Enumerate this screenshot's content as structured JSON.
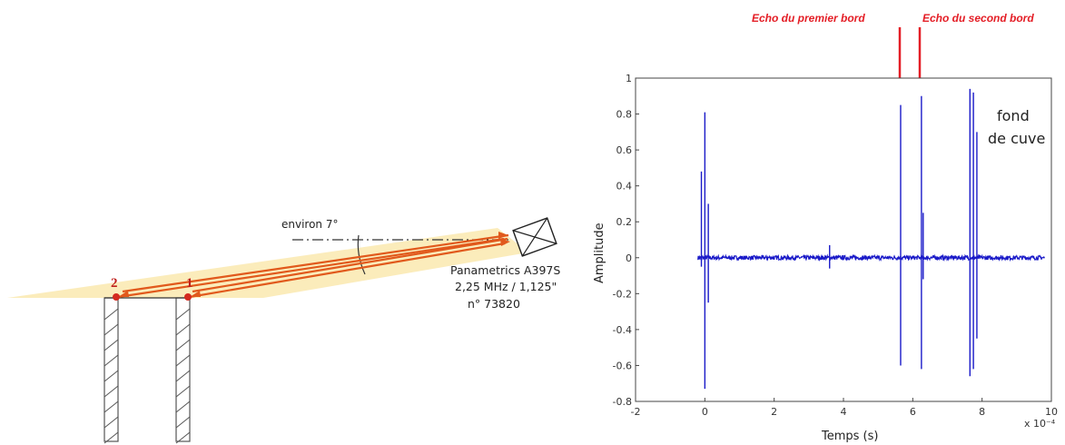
{
  "diagram": {
    "angle_label": "environ 7°",
    "transducer_lines": [
      "Panametrics A397S",
      "2,25 MHz / 1,125\"",
      "n° 73820"
    ],
    "point_labels": [
      "2",
      "1"
    ],
    "colors": {
      "beam": "#fbeab4",
      "ray": "#e1591c",
      "point": "#d42a1f",
      "hatch": "#555555"
    }
  },
  "annotations": {
    "echo1": "Echo du premier bord",
    "echo2": "Echo du second bord",
    "color": "#e41e26"
  },
  "chart_data": {
    "type": "line",
    "title": "",
    "xlabel": "Temps (s)",
    "ylabel": "Amplitude",
    "x_exponent_label": "x 10⁻⁴",
    "xlim": [
      -2,
      10
    ],
    "ylim": [
      -0.8,
      1
    ],
    "xticks": [
      -2,
      0,
      2,
      4,
      6,
      8,
      10
    ],
    "yticks": [
      -0.8,
      -0.6,
      -0.4,
      -0.2,
      0,
      0.2,
      0.4,
      0.6,
      0.8,
      1
    ],
    "ytick_labels": [
      "-0.8",
      "-0.6",
      "-0.4",
      "-0.2",
      "0",
      "0.2",
      "0.4",
      "0.6",
      "0.8",
      "1"
    ],
    "grid": false,
    "series_color": "#1a1ac8",
    "text_annotation": [
      "fond",
      "de cuve"
    ],
    "spikes": [
      {
        "x": -0.1,
        "max": 0.48,
        "min": -0.05
      },
      {
        "x": 0.0,
        "max": 0.81,
        "min": -0.73
      },
      {
        "x": 0.1,
        "max": 0.3,
        "min": -0.25
      },
      {
        "x": 3.6,
        "max": 0.07,
        "min": -0.06
      },
      {
        "x": 5.65,
        "max": 0.85,
        "min": -0.6
      },
      {
        "x": 6.25,
        "max": 0.9,
        "min": -0.62
      },
      {
        "x": 6.3,
        "max": 0.25,
        "min": -0.12
      },
      {
        "x": 7.65,
        "max": 0.94,
        "min": -0.66
      },
      {
        "x": 7.75,
        "max": 0.92,
        "min": -0.62
      },
      {
        "x": 7.85,
        "max": 0.7,
        "min": -0.45
      }
    ],
    "baseline_noise": 0.012
  }
}
